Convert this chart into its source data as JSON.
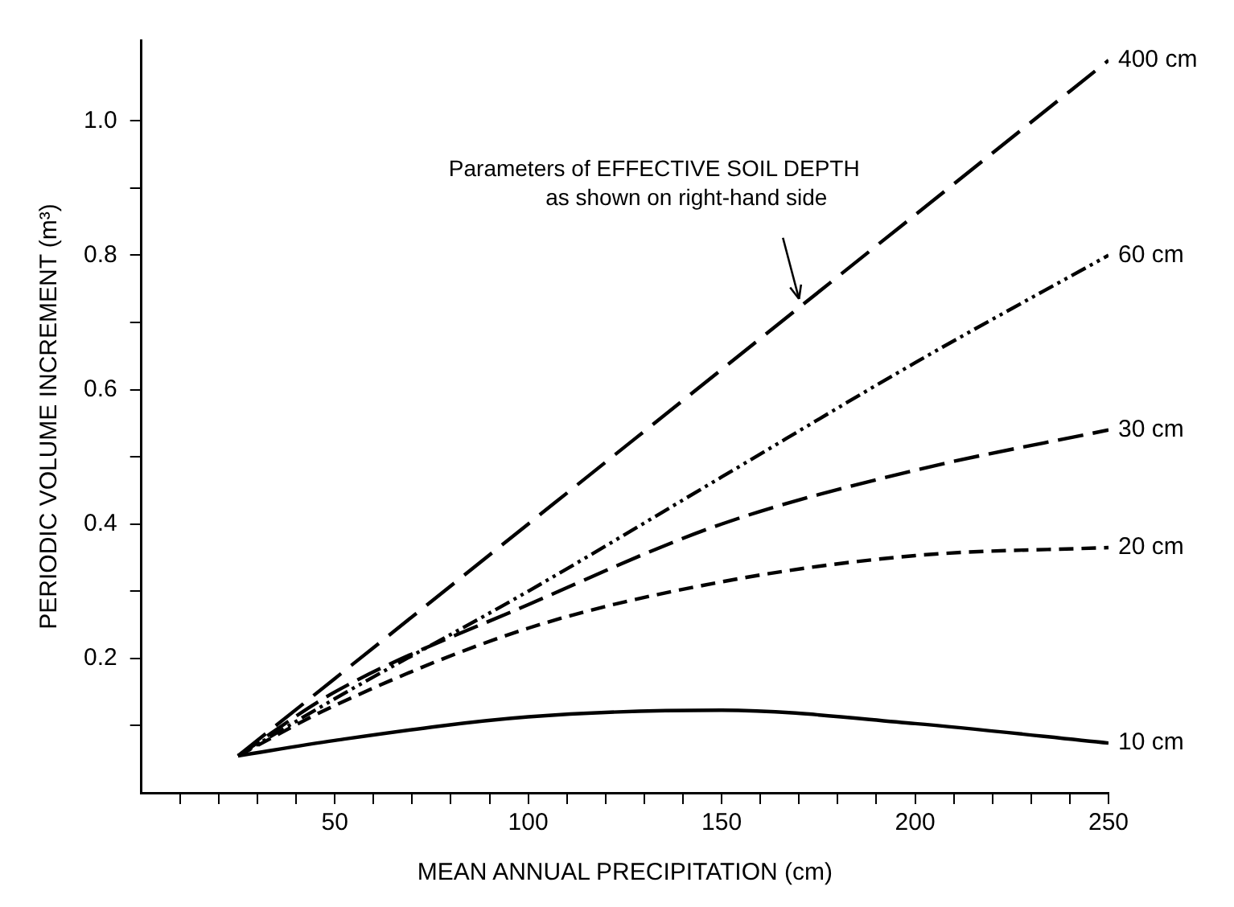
{
  "chart_data": {
    "type": "line",
    "xlabel": "MEAN ANNUAL PRECIPITATION (cm)",
    "ylabel": "PERIODIC VOLUME INCREMENT (m³)",
    "x": [
      25,
      50,
      100,
      150,
      200,
      250
    ],
    "xlim": [
      0,
      250
    ],
    "xticks": [
      {
        "value": 10,
        "label": null
      },
      {
        "value": 20,
        "label": null
      },
      {
        "value": 30,
        "label": null
      },
      {
        "value": 40,
        "label": null
      },
      50,
      {
        "value": 60,
        "label": null
      },
      {
        "value": 70,
        "label": null
      },
      {
        "value": 80,
        "label": null
      },
      {
        "value": 90,
        "label": null
      },
      100,
      {
        "value": 110,
        "label": null
      },
      {
        "value": 120,
        "label": null
      },
      {
        "value": 130,
        "label": null
      },
      {
        "value": 140,
        "label": null
      },
      150,
      {
        "value": 160,
        "label": null
      },
      {
        "value": 170,
        "label": null
      },
      {
        "value": 180,
        "label": null
      },
      {
        "value": 190,
        "label": null
      },
      200,
      {
        "value": 210,
        "label": null
      },
      {
        "value": 220,
        "label": null
      },
      {
        "value": 230,
        "label": null
      },
      {
        "value": 240,
        "label": null
      },
      250
    ],
    "ylim": [
      0,
      1.12
    ],
    "yticks": [
      {
        "value": 0.1,
        "label": null
      },
      {
        "value": 0.2,
        "label": "0.2"
      },
      {
        "value": 0.3,
        "label": null
      },
      {
        "value": 0.4,
        "label": "0.4"
      },
      {
        "value": 0.5,
        "label": null
      },
      {
        "value": 0.6,
        "label": "0.6"
      },
      {
        "value": 0.7,
        "label": null
      },
      {
        "value": 0.8,
        "label": "0.8"
      },
      {
        "value": 0.9,
        "label": null
      },
      {
        "value": 1.0,
        "label": "1.0"
      }
    ],
    "grid": false,
    "legend": false,
    "marker": "none",
    "series": [
      {
        "name": "400 cm",
        "color": "#000000",
        "line_style": "dashed",
        "values": [
          0.055,
          0.17,
          0.4,
          0.63,
          0.86,
          1.09
        ]
      },
      {
        "name": "60 cm",
        "color": "#000000",
        "line_style": "dotted",
        "values": [
          0.055,
          0.14,
          0.3,
          0.47,
          0.64,
          0.8
        ]
      },
      {
        "name": "30 cm",
        "color": "#000000",
        "line_style": "dashed",
        "values": [
          0.055,
          0.15,
          0.28,
          0.4,
          0.48,
          0.54
        ]
      },
      {
        "name": "20 cm",
        "color": "#000000",
        "line_style": "dashed",
        "values": [
          0.055,
          0.13,
          0.245,
          0.314,
          0.353,
          0.365
        ]
      },
      {
        "name": "10 cm",
        "color": "#000000",
        "line_style": "solid",
        "values": [
          0.055,
          0.078,
          0.113,
          0.123,
          0.103,
          0.074
        ]
      }
    ],
    "annotations": [
      {
        "text": "Parameters of EFFECTIVE SOIL DEPTH\nas shown on right-hand side",
        "x": 170,
        "y": 0.735
      }
    ]
  }
}
